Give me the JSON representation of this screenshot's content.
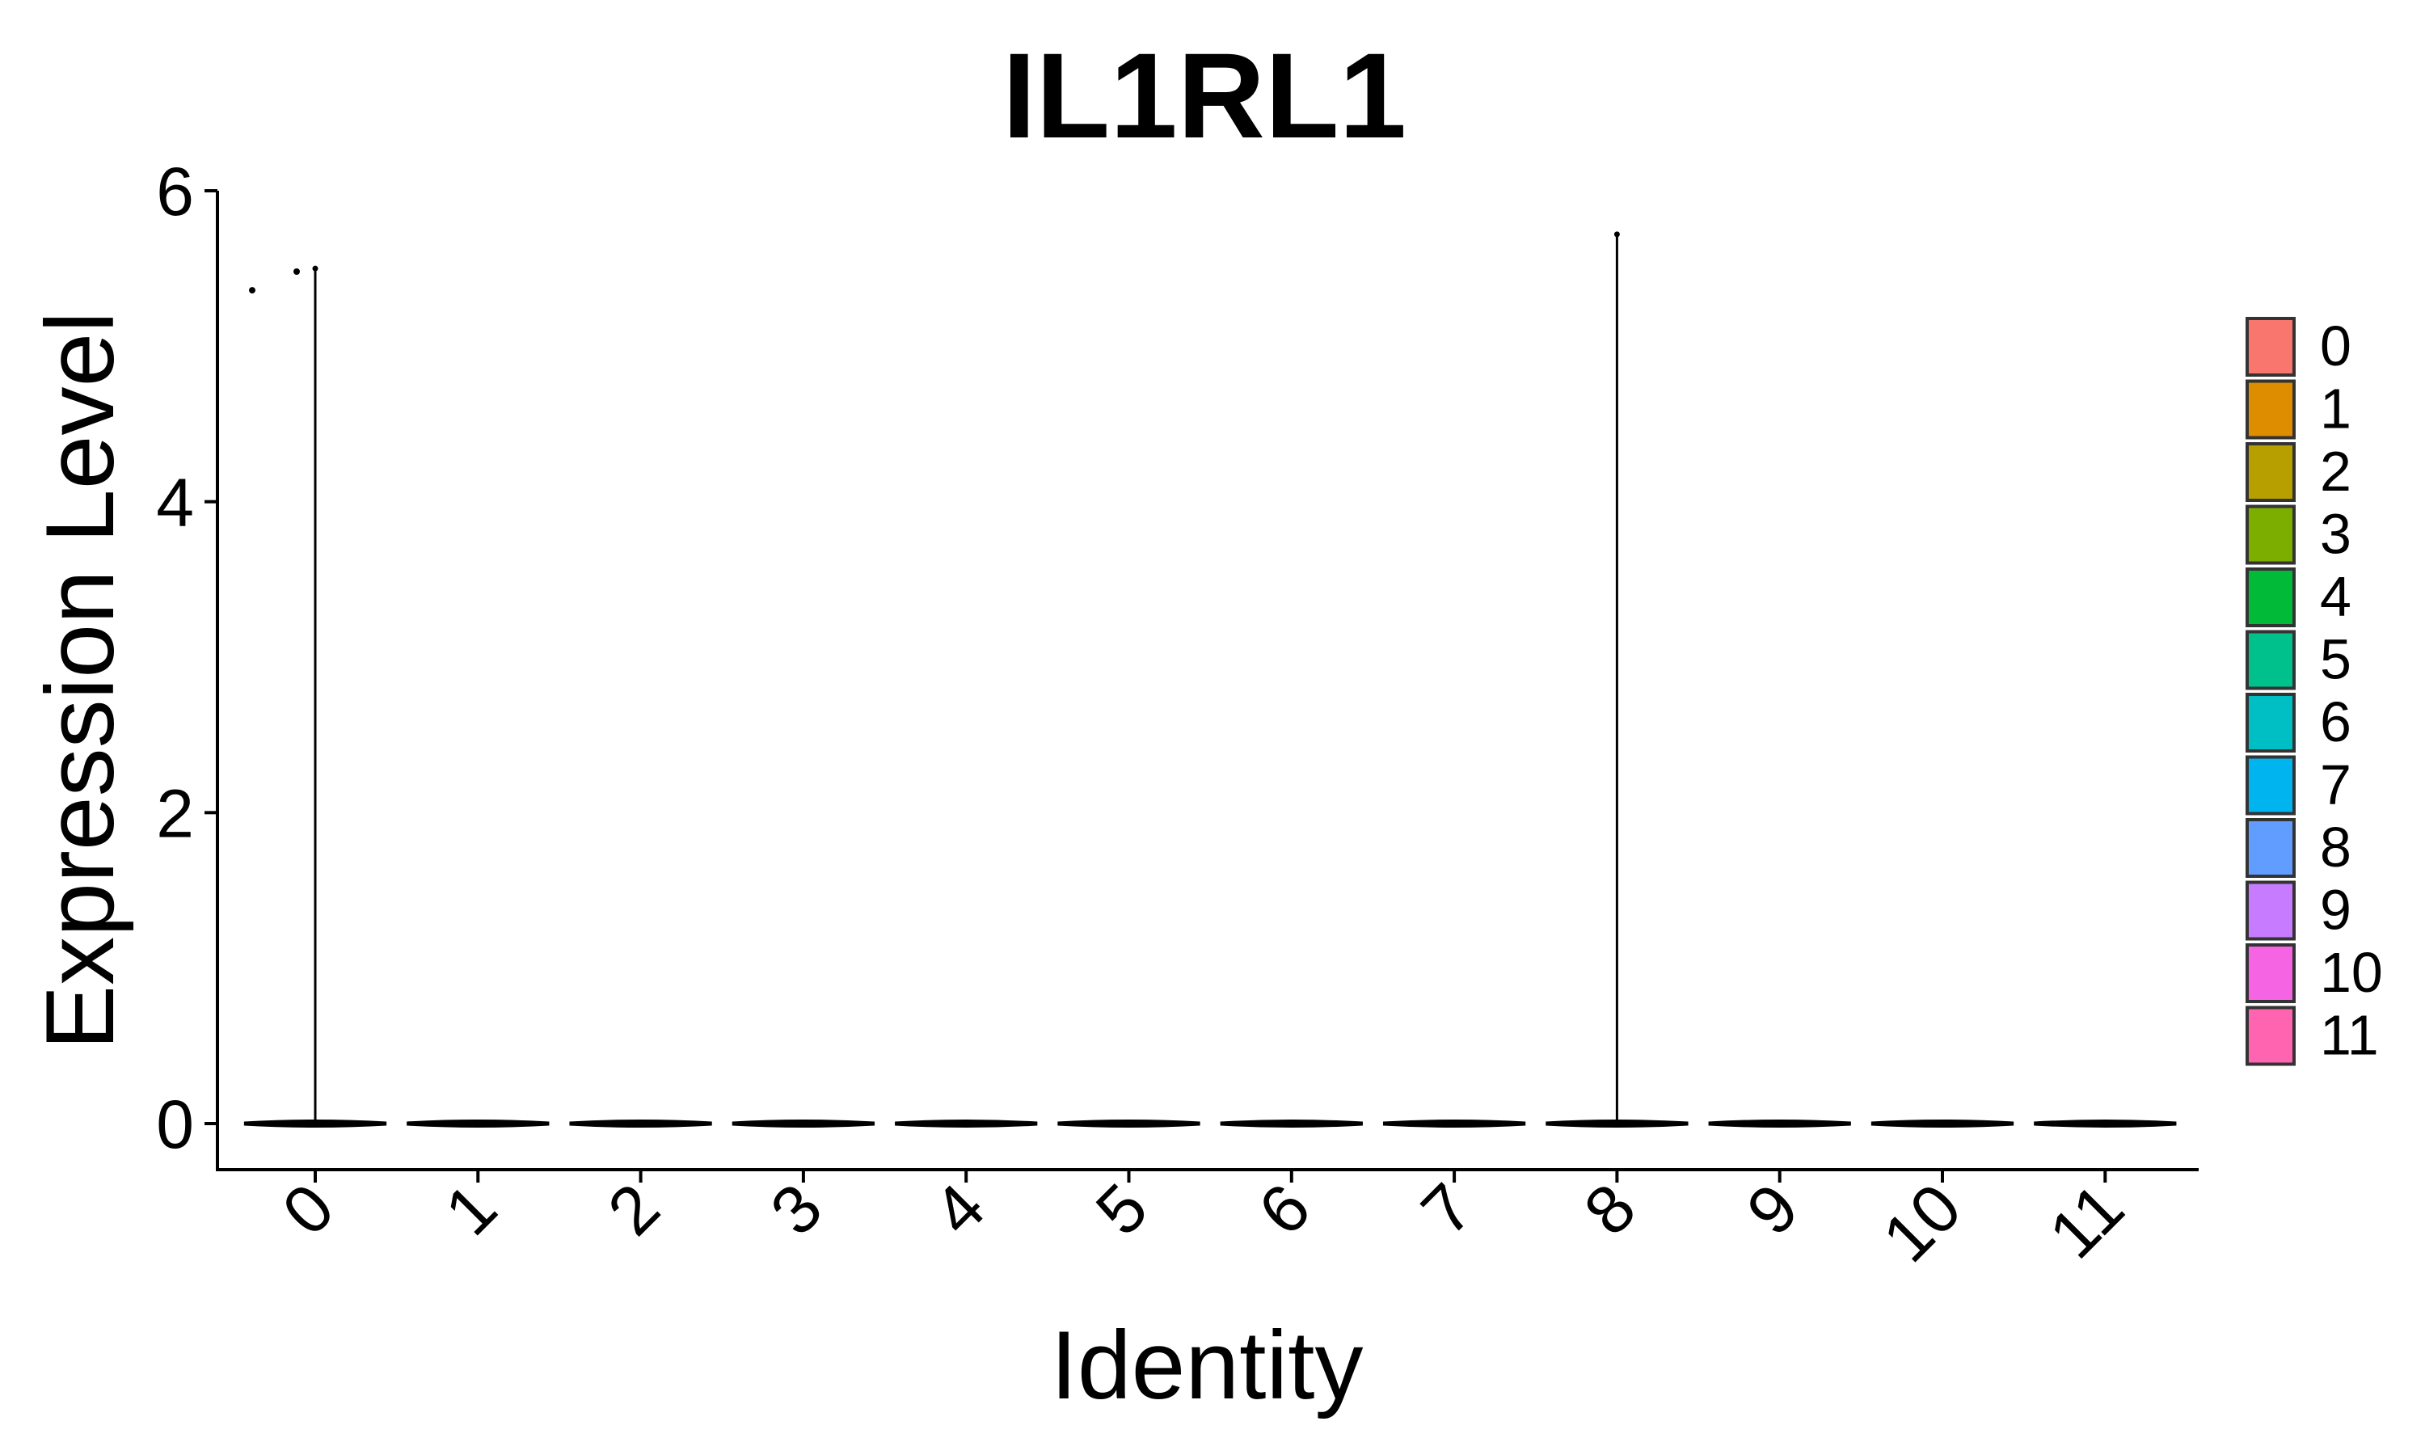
{
  "chart_data": {
    "type": "violin",
    "title": "IL1RL1",
    "xlabel": "Identity",
    "ylabel": "Expression Level",
    "categories": [
      "0",
      "1",
      "2",
      "3",
      "4",
      "5",
      "6",
      "7",
      "8",
      "9",
      "10",
      "11"
    ],
    "ylim": [
      -0.3,
      6.0
    ],
    "yticks": [
      0,
      2,
      4,
      6
    ],
    "series": [
      {
        "category": "0",
        "color": "#F8766D",
        "max": 5.5,
        "points": [
          5.36,
          5.48
        ]
      },
      {
        "category": "1",
        "color": "#DE8C00",
        "max": 0,
        "points": []
      },
      {
        "category": "2",
        "color": "#B79F00",
        "max": 0,
        "points": []
      },
      {
        "category": "3",
        "color": "#7CAE00",
        "max": 0,
        "points": []
      },
      {
        "category": "4",
        "color": "#00BA38",
        "max": 0,
        "points": []
      },
      {
        "category": "5",
        "color": "#00C08B",
        "max": 0,
        "points": []
      },
      {
        "category": "6",
        "color": "#00BFC4",
        "max": 0,
        "points": []
      },
      {
        "category": "7",
        "color": "#00B4F0",
        "max": 0,
        "points": []
      },
      {
        "category": "8",
        "color": "#619CFF",
        "max": 5.72,
        "points": []
      },
      {
        "category": "9",
        "color": "#C77CFF",
        "max": 0,
        "points": []
      },
      {
        "category": "10",
        "color": "#F564E3",
        "max": 0,
        "points": []
      },
      {
        "category": "11",
        "color": "#FF64B0",
        "max": 0,
        "points": []
      }
    ],
    "legend": {
      "position": "right",
      "entries": [
        "0",
        "1",
        "2",
        "3",
        "4",
        "5",
        "6",
        "7",
        "8",
        "9",
        "10",
        "11"
      ]
    },
    "grid": false
  }
}
